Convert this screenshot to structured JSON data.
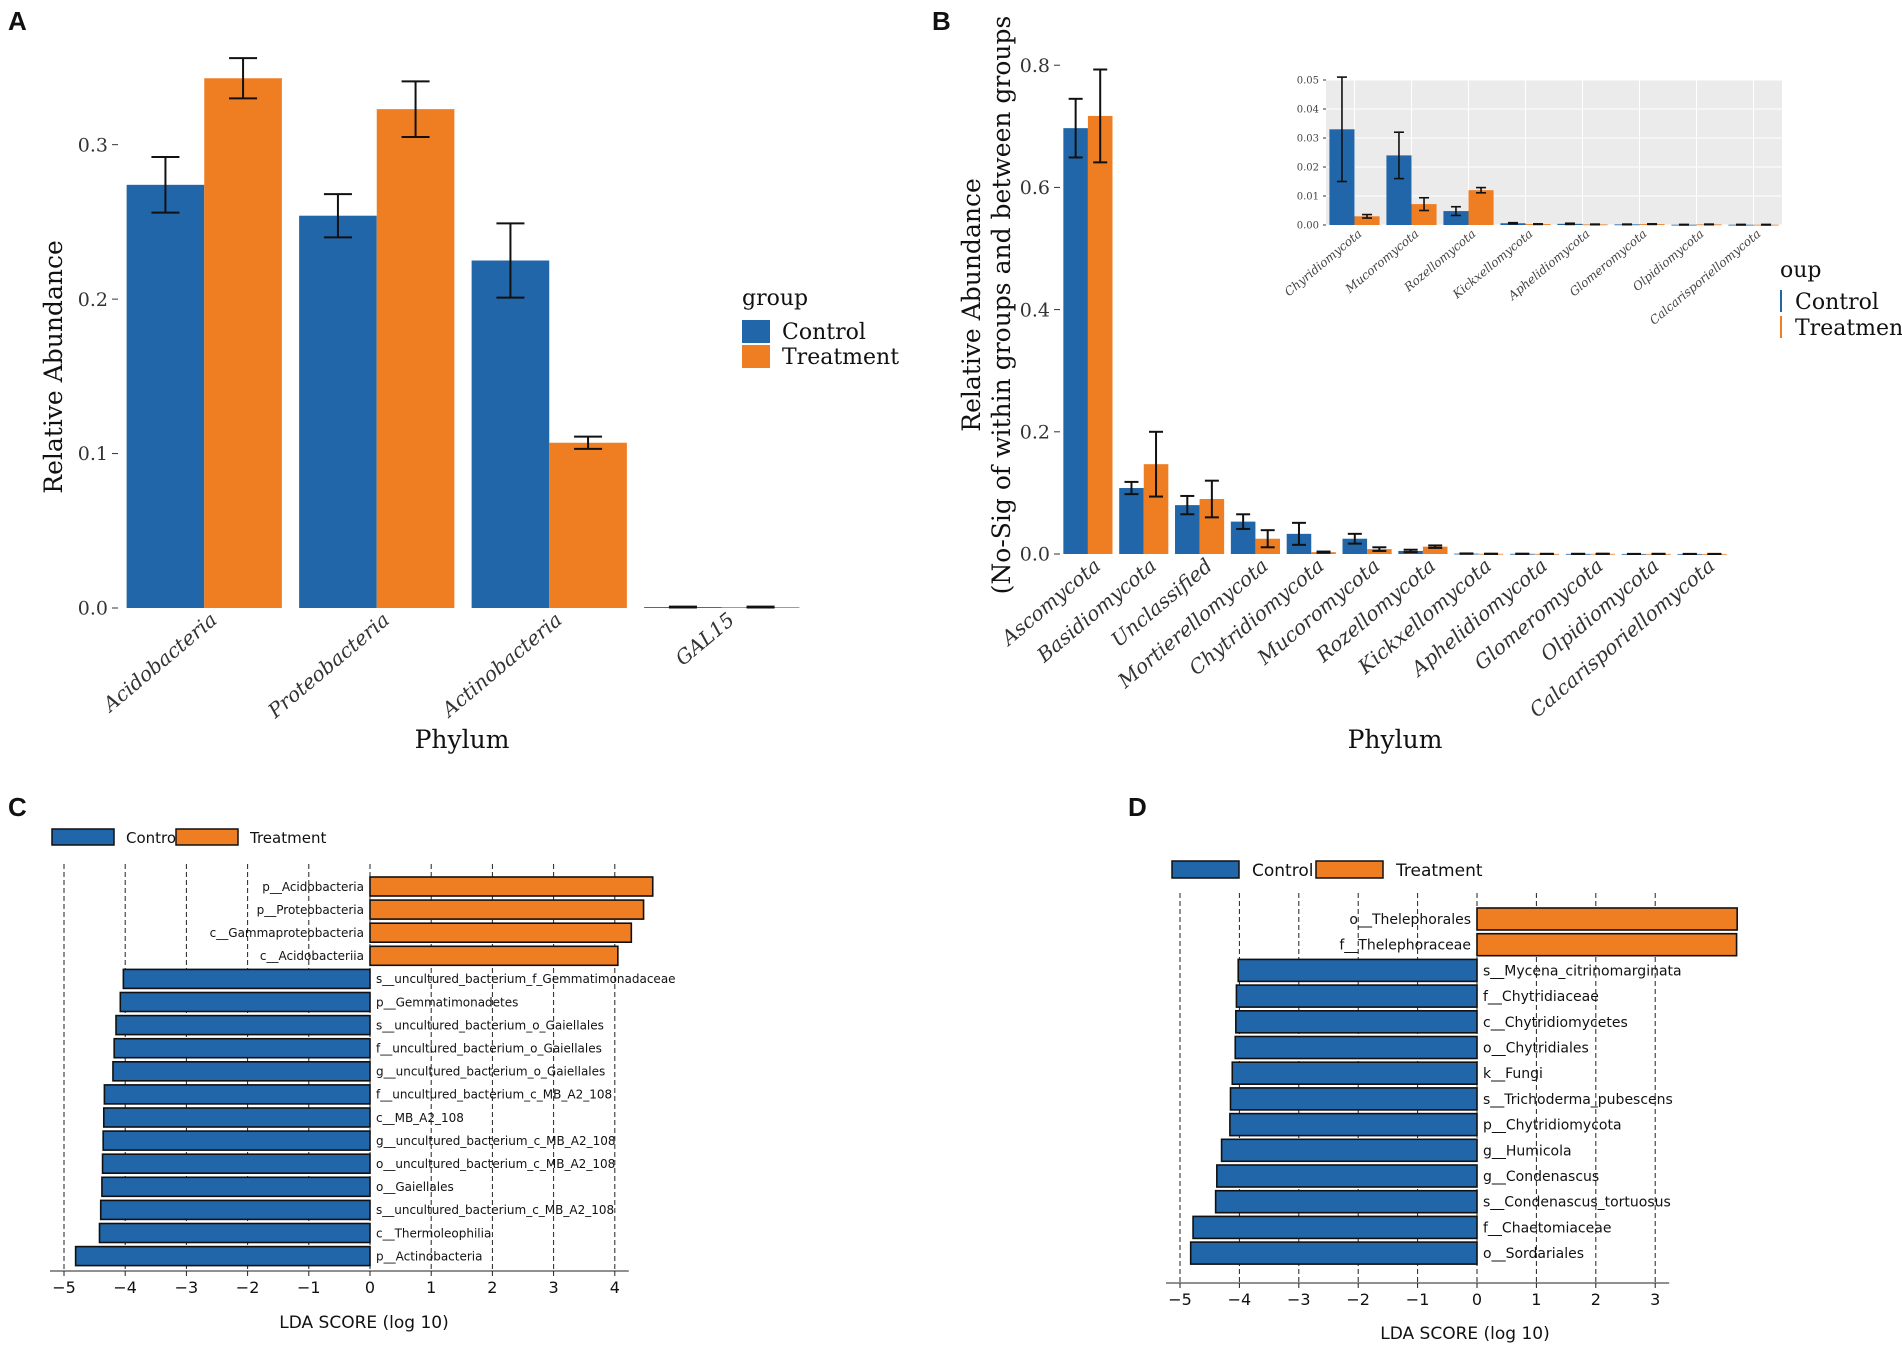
{
  "colors": {
    "control": "#2166a8",
    "treatment": "#ef7d22",
    "inset_bg": "#ebebeb"
  },
  "panels": {
    "a": "A",
    "b": "B",
    "c": "C",
    "d": "D"
  },
  "chart_data": [
    {
      "id": "A",
      "type": "bar",
      "xlabel": "Phylum",
      "ylabel": "Relative Abundance",
      "ylim": [
        0,
        0.36
      ],
      "yticks": [
        0.0,
        0.1,
        0.2,
        0.3
      ],
      "ytick_labels": [
        "0.0",
        "0.1",
        "0.2",
        "0.3"
      ],
      "categories": [
        "Acidobacteria",
        "Proteobacteria",
        "Actinobacteria",
        "GAL15"
      ],
      "legend_title": "group",
      "series": [
        {
          "name": "Control",
          "values": [
            0.274,
            0.254,
            0.225,
            0.0006
          ],
          "errors": [
            0.018,
            0.014,
            0.024,
            0.0003
          ]
        },
        {
          "name": "Treatment",
          "values": [
            0.343,
            0.323,
            0.107,
            0.0006
          ],
          "errors": [
            0.013,
            0.018,
            0.004,
            0.0003
          ]
        }
      ]
    },
    {
      "id": "B",
      "type": "bar",
      "xlabel": "Phylum",
      "ylabel_line1": "Relative Abundance",
      "ylabel_line2": "(No-Sig of within groups and between groups",
      "ylim": [
        0,
        0.82
      ],
      "yticks": [
        0.0,
        0.2,
        0.4,
        0.6,
        0.8
      ],
      "ytick_labels": [
        "0.0",
        "0.2",
        "0.4",
        "0.6",
        "0.8"
      ],
      "categories": [
        "Ascomycota",
        "Basidiomycota",
        "Unclassified",
        "Mortierellomycota",
        "Chytridiomycota",
        "Mucoromycota",
        "Rozellomycota",
        "Kickxellomycota",
        "Aphelidiomycota",
        "Glomeromycota",
        "Olpidiomycota",
        "Calcarisporiellomycota"
      ],
      "legend_title": "oup",
      "series": [
        {
          "name": "Control",
          "values": [
            0.697,
            0.108,
            0.08,
            0.053,
            0.033,
            0.025,
            0.005,
            0.0006,
            0.0003,
            0.0002,
            0.0001,
            0.0001
          ],
          "errors": [
            0.048,
            0.01,
            0.015,
            0.012,
            0.018,
            0.008,
            0.002,
            0.0003,
            0.0002,
            0.0001,
            0.0001,
            0.0001
          ]
        },
        {
          "name": "Treatment",
          "values": [
            0.717,
            0.147,
            0.09,
            0.025,
            0.003,
            0.008,
            0.012,
            0.0003,
            0.0002,
            0.0003,
            0.0002,
            0.0001
          ],
          "errors": [
            0.076,
            0.053,
            0.03,
            0.014,
            0.001,
            0.003,
            0.002,
            0.0002,
            0.0001,
            0.0002,
            0.0001,
            0.0001
          ]
        }
      ],
      "inset": {
        "ylim": [
          0,
          0.05
        ],
        "yticks": [
          0.0,
          0.01,
          0.02,
          0.03,
          0.04,
          0.05
        ],
        "ytick_labels": [
          "0.00",
          "0.01",
          "0.02",
          "0.03",
          "0.04",
          "0.05"
        ],
        "categories": [
          "Chyridiomycota",
          "Mucoromycota",
          "Rozellomycota",
          "Kickxellomycota",
          "Aphelidiomycota",
          "Glomeromycota",
          "Olpidiomycota",
          "Calcarisporiellomycota"
        ],
        "series": [
          {
            "name": "Control",
            "values": [
              0.033,
              0.024,
              0.0048,
              0.0006,
              0.0004,
              0.0002,
              0.0001,
              0.0001
            ],
            "errors": [
              0.018,
              0.008,
              0.0015,
              0.0002,
              0.0002,
              0.0001,
              0.0001,
              0.0001
            ]
          },
          {
            "name": "Treatment",
            "values": [
              0.003,
              0.0072,
              0.012,
              0.0003,
              0.0002,
              0.0003,
              0.0002,
              0.0001
            ],
            "errors": [
              0.0006,
              0.0022,
              0.0009,
              0.0001,
              0.0001,
              0.0001,
              0.0001,
              0.0001
            ]
          }
        ]
      }
    },
    {
      "id": "C",
      "type": "bar",
      "orientation": "horizontal",
      "xlabel": "LDA SCORE (log 10)",
      "xlim": [
        -5,
        4.5
      ],
      "xticks": [
        -5,
        -4,
        -3,
        -2,
        -1,
        0,
        1,
        2,
        3,
        4
      ],
      "xtick_labels": [
        "−5",
        "−4",
        "−3",
        "−2",
        "−1",
        "0",
        "1",
        "2",
        "3",
        "4"
      ],
      "legend": [
        "Control",
        "Treatment"
      ],
      "items": [
        {
          "label": "p__Acidobacteria",
          "value": 4.62,
          "group": "Treatment"
        },
        {
          "label": "p__Proteobacteria",
          "value": 4.47,
          "group": "Treatment"
        },
        {
          "label": "c__Gammaproteobacteria",
          "value": 4.27,
          "group": "Treatment"
        },
        {
          "label": "c__Acidobacteriia",
          "value": 4.05,
          "group": "Treatment"
        },
        {
          "label": "s__uncultured_bacterium_f_Gemmatimonadaceae",
          "value": -4.03,
          "group": "Control"
        },
        {
          "label": "p__Gemmatimonadetes",
          "value": -4.08,
          "group": "Control"
        },
        {
          "label": "s__uncultured_bacterium_o_Gaiellales",
          "value": -4.15,
          "group": "Control"
        },
        {
          "label": "f__uncultured_bacterium_o_Gaiellales",
          "value": -4.18,
          "group": "Control"
        },
        {
          "label": "g__uncultured_bacterium_o_Gaiellales",
          "value": -4.2,
          "group": "Control"
        },
        {
          "label": "f__uncultured_bacterium_c_MB_A2_108",
          "value": -4.34,
          "group": "Control"
        },
        {
          "label": "c__MB_A2_108",
          "value": -4.35,
          "group": "Control"
        },
        {
          "label": "g__uncultured_bacterium_c_MB_A2_108",
          "value": -4.36,
          "group": "Control"
        },
        {
          "label": "o__uncultured_bacterium_c_MB_A2_108",
          "value": -4.37,
          "group": "Control"
        },
        {
          "label": "o__Gaiellales",
          "value": -4.38,
          "group": "Control"
        },
        {
          "label": "s__uncultured_bacterium_c_MB_A2_108",
          "value": -4.4,
          "group": "Control"
        },
        {
          "label": "c__Thermoleophilia",
          "value": -4.42,
          "group": "Control"
        },
        {
          "label": "p__Actinobacteria",
          "value": -4.81,
          "group": "Control"
        }
      ]
    },
    {
      "id": "D",
      "type": "bar",
      "orientation": "horizontal",
      "xlabel": "LDA SCORE (log 10)",
      "xlim": [
        -5,
        4.4
      ],
      "xticks": [
        -5,
        -4,
        -3,
        -2,
        -1,
        0,
        1,
        2,
        3
      ],
      "xtick_labels": [
        "−5",
        "−4",
        "−3",
        "−2",
        "−1",
        "0",
        "1",
        "2",
        "3"
      ],
      "legend": [
        "Control",
        "Treatment"
      ],
      "items": [
        {
          "label": "o__Thelephorales",
          "value": 4.38,
          "group": "Treatment"
        },
        {
          "label": "f__Thelephoraceae",
          "value": 4.37,
          "group": "Treatment"
        },
        {
          "label": "s__Mycena_citrinomarginata",
          "value": -4.02,
          "group": "Control"
        },
        {
          "label": "f__Chytridiaceae",
          "value": -4.05,
          "group": "Control"
        },
        {
          "label": "c__Chytridiomycetes",
          "value": -4.06,
          "group": "Control"
        },
        {
          "label": "o__Chytridiales",
          "value": -4.07,
          "group": "Control"
        },
        {
          "label": "k__Fungi",
          "value": -4.12,
          "group": "Control"
        },
        {
          "label": "s__Trichoderma_pubescens",
          "value": -4.15,
          "group": "Control"
        },
        {
          "label": "p__Chytridiomycota",
          "value": -4.16,
          "group": "Control"
        },
        {
          "label": "g__Humicola",
          "value": -4.3,
          "group": "Control"
        },
        {
          "label": "g__Condenascus",
          "value": -4.38,
          "group": "Control"
        },
        {
          "label": "s__Condenascus_tortuosus",
          "value": -4.4,
          "group": "Control"
        },
        {
          "label": "f__Chaetomiaceae",
          "value": -4.78,
          "group": "Control"
        },
        {
          "label": "o__Sordariales",
          "value": -4.82,
          "group": "Control"
        }
      ]
    }
  ]
}
